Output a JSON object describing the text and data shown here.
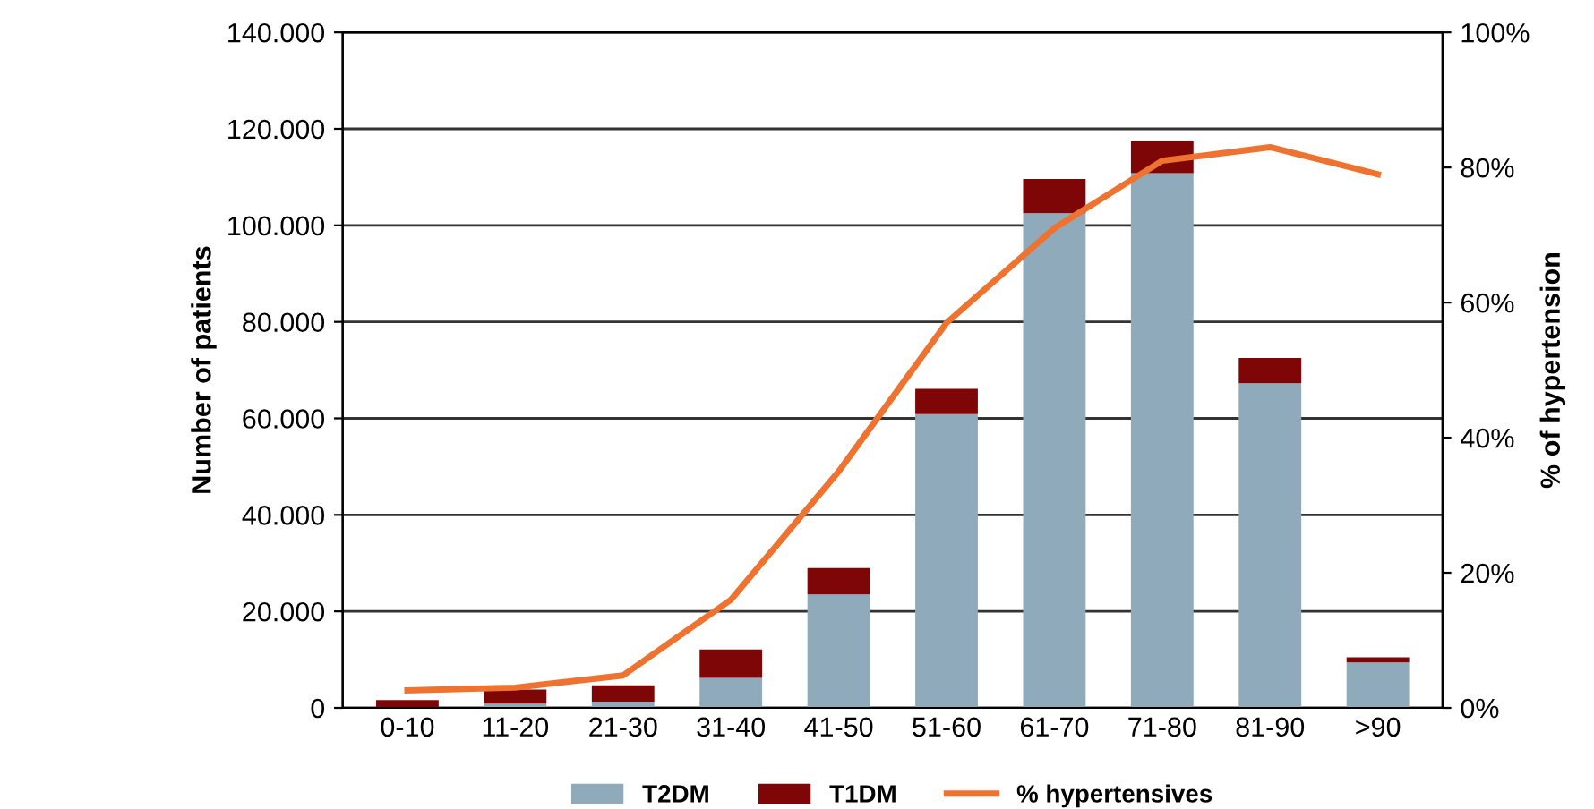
{
  "chart_data": {
    "type": "bar",
    "stacked": true,
    "ylabel": "Number of patients",
    "y2label": "% of hypertension",
    "categories": [
      "0-10",
      "11-20",
      "21-30",
      "31-40",
      "41-50",
      "51-60",
      "61-70",
      "71-80",
      "81-90",
      ">90"
    ],
    "series": [
      {
        "name": "T2DM",
        "color": "#8fabbb",
        "values": [
          null,
          900,
          1300,
          6200,
          23500,
          60900,
          102500,
          110800,
          67300,
          9400
        ]
      },
      {
        "name": "T1DM",
        "color": "#7f0606",
        "values": [
          1600,
          2900,
          3400,
          5900,
          5500,
          5200,
          7100,
          6800,
          5200,
          1100
        ]
      },
      {
        "name": "% hypertensives",
        "type": "line",
        "axis": "y2",
        "color": "#ee7330",
        "values": [
          2.6,
          3,
          4.8,
          16,
          35,
          57,
          71,
          81,
          83,
          79
        ]
      }
    ],
    "ylim": [
      0,
      140000
    ],
    "yticks": [
      {
        "value": 0,
        "label": "0"
      },
      {
        "value": 20000,
        "label": "20.000"
      },
      {
        "value": 40000,
        "label": "40.000"
      },
      {
        "value": 60000,
        "label": "60.000"
      },
      {
        "value": 80000,
        "label": "80.000"
      },
      {
        "value": 100000,
        "label": "100.000"
      },
      {
        "value": 120000,
        "label": "120.000"
      },
      {
        "value": 140000,
        "label": "140.000"
      }
    ],
    "y2lim": [
      0,
      100
    ],
    "y2ticks": [
      {
        "value": 0,
        "label": "0%"
      },
      {
        "value": 20,
        "label": "20%"
      },
      {
        "value": 40,
        "label": "40%"
      },
      {
        "value": 60,
        "label": "60%"
      },
      {
        "value": 80,
        "label": "80%"
      },
      {
        "value": 100,
        "label": "100%"
      }
    ],
    "grid": "y",
    "legend": "bottom",
    "marker": "none",
    "line_style": "solid"
  }
}
